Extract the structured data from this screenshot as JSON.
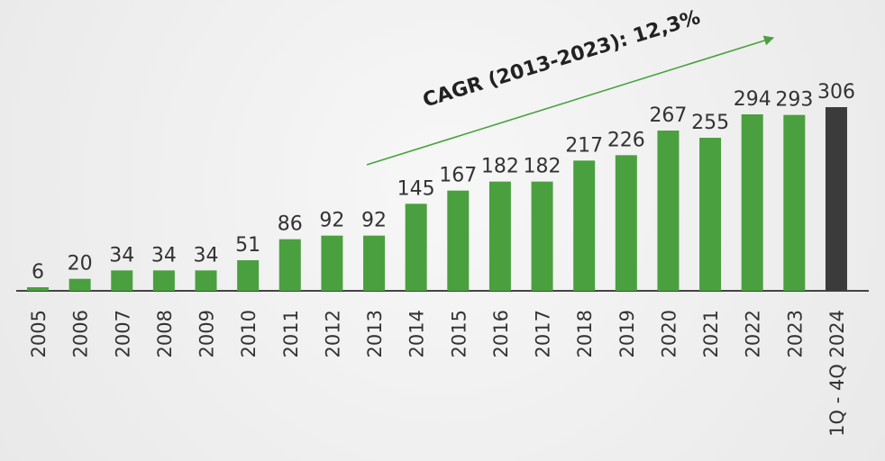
{
  "chart_data": {
    "type": "bar",
    "categories": [
      "2005",
      "2006",
      "2007",
      "2008",
      "2009",
      "2010",
      "2011",
      "2012",
      "2013",
      "2014",
      "2015",
      "2016",
      "2017",
      "2018",
      "2019",
      "2020",
      "2021",
      "2022",
      "2023",
      "1Q - 4Q 2024"
    ],
    "values": [
      6,
      20,
      34,
      34,
      34,
      51,
      86,
      92,
      92,
      145,
      167,
      182,
      182,
      217,
      226,
      267,
      255,
      294,
      293,
      306
    ],
    "colors": [
      "#4aa03f",
      "#4aa03f",
      "#4aa03f",
      "#4aa03f",
      "#4aa03f",
      "#4aa03f",
      "#4aa03f",
      "#4aa03f",
      "#4aa03f",
      "#4aa03f",
      "#4aa03f",
      "#4aa03f",
      "#4aa03f",
      "#4aa03f",
      "#4aa03f",
      "#4aa03f",
      "#4aa03f",
      "#4aa03f",
      "#4aa03f",
      "#3b3b3b"
    ],
    "annotations": [
      "CAGR (2013-2023): 12,3%"
    ],
    "arrow_color": "#4aa03f"
  }
}
